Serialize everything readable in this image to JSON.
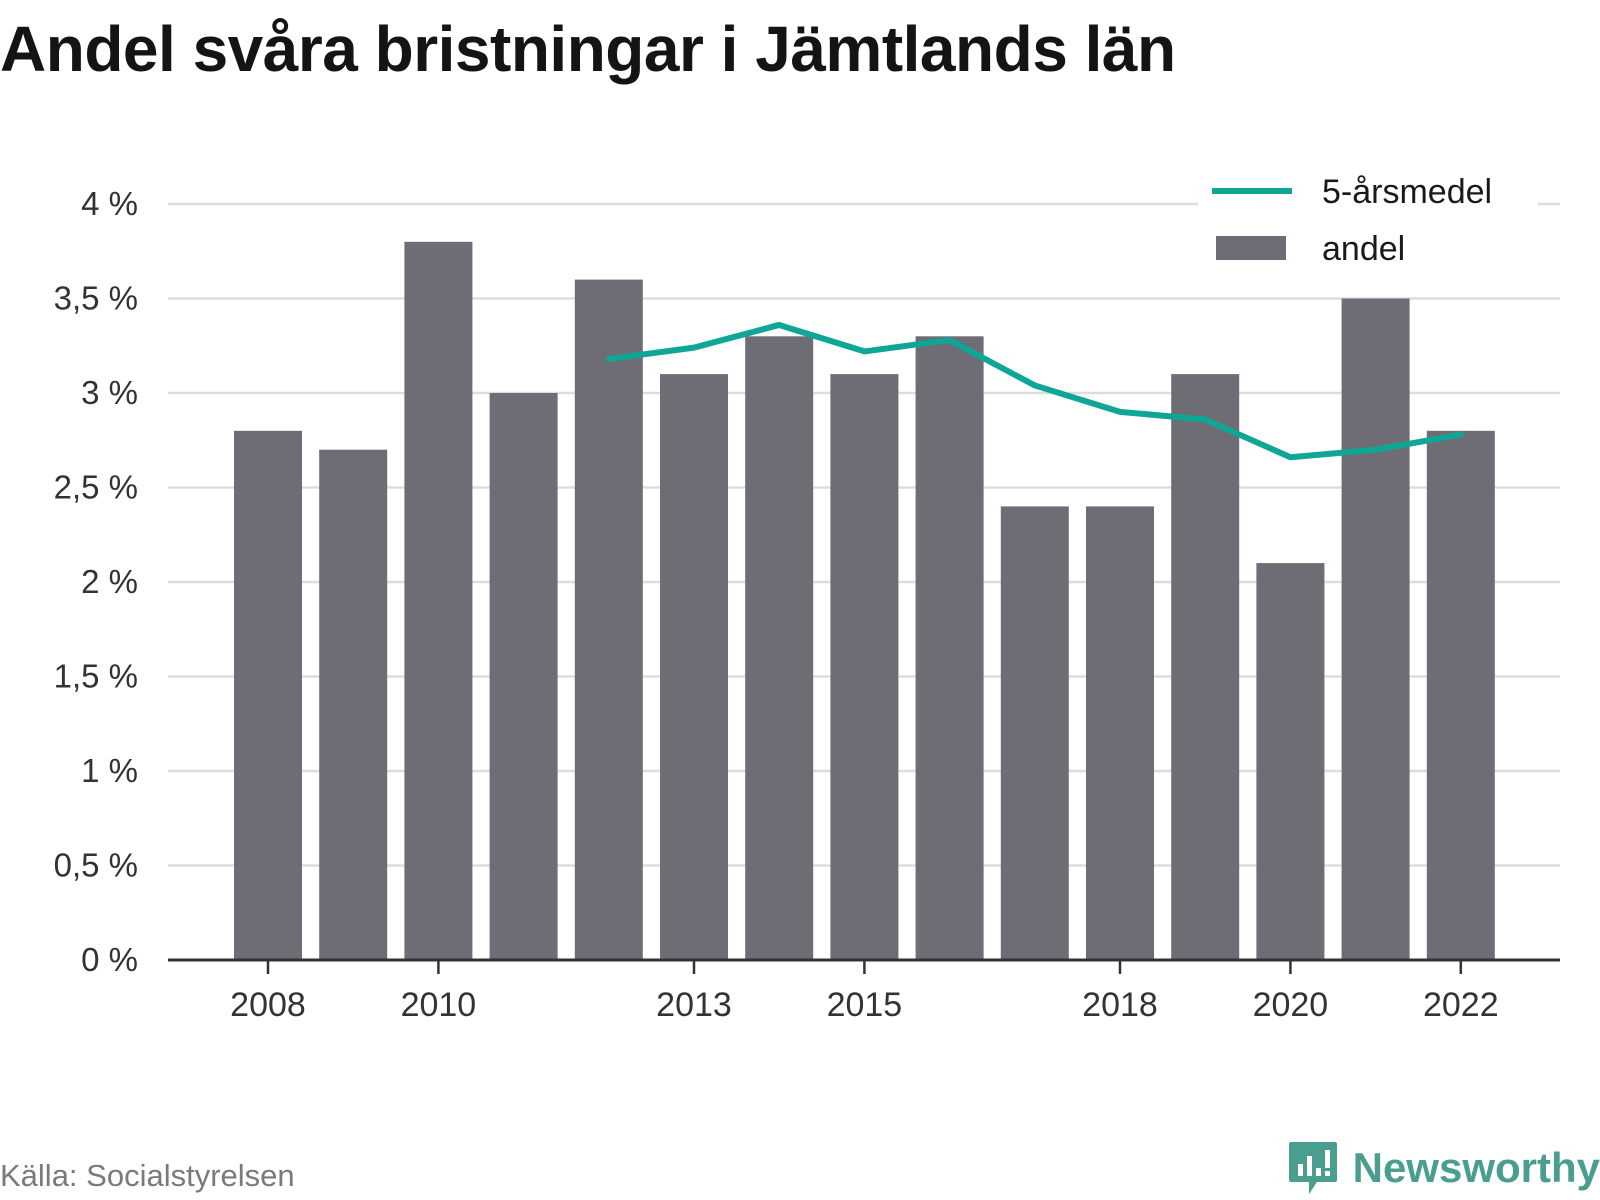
{
  "title": "Andel svåra bristningar i Jämtlands län",
  "source": "Källa: Socialstyrelsen",
  "brand": "Newsworthy",
  "colors": {
    "bar": "#6e6d75",
    "line": "#0fa597",
    "grid": "#dddddd",
    "axis": "#333333",
    "brand": "#4a9e90"
  },
  "chart_data": {
    "type": "bar",
    "x": [
      2008,
      2009,
      2010,
      2011,
      2012,
      2013,
      2014,
      2015,
      2016,
      2017,
      2018,
      2019,
      2020,
      2021,
      2022
    ],
    "x_tick_labels": [
      "2008",
      "2010",
      "2013",
      "2015",
      "2018",
      "2020",
      "2022"
    ],
    "y_tick_labels": [
      "0 %",
      "0,5 %",
      "1 %",
      "1,5 %",
      "2 %",
      "2,5 %",
      "3 %",
      "3,5 %",
      "4 %"
    ],
    "ylim": [
      0,
      4
    ],
    "y_unit": "%",
    "grid": true,
    "legend_position": "top-right",
    "series": [
      {
        "name": "andel",
        "type": "bar",
        "values": [
          2.8,
          2.7,
          3.8,
          3.0,
          3.6,
          3.1,
          3.3,
          3.1,
          3.3,
          2.4,
          2.4,
          3.1,
          2.1,
          3.5,
          2.8
        ]
      },
      {
        "name": "5-årsmedel",
        "type": "line",
        "values": [
          null,
          null,
          null,
          null,
          3.18,
          3.24,
          3.36,
          3.22,
          3.28,
          3.04,
          2.9,
          2.86,
          2.66,
          2.7,
          2.78
        ]
      }
    ],
    "legend": [
      "5-årsmedel",
      "andel"
    ]
  }
}
